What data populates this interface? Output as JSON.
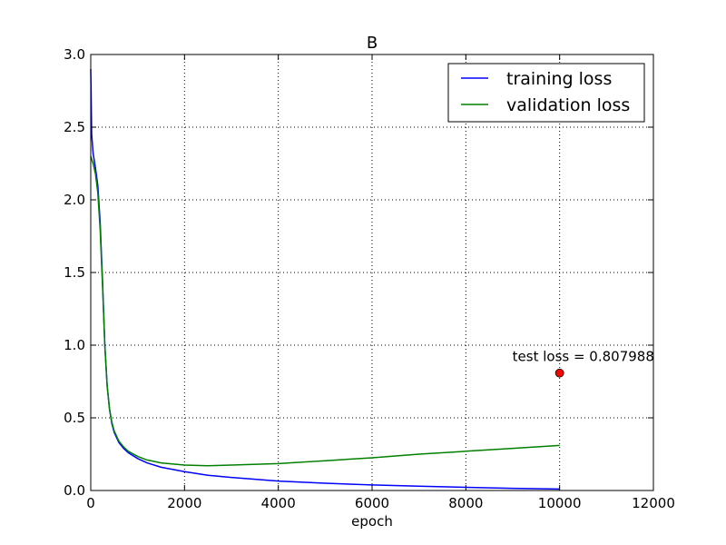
{
  "chart_data": {
    "type": "line",
    "title": "B",
    "xlabel": "epoch",
    "ylabel": "",
    "xlim": [
      0,
      12000
    ],
    "ylim": [
      0.0,
      3.0
    ],
    "xticks": [
      "0",
      "2000",
      "4000",
      "6000",
      "8000",
      "10000",
      "12000"
    ],
    "yticks": [
      "0.0",
      "0.5",
      "1.0",
      "1.5",
      "2.0",
      "2.5",
      "3.0"
    ],
    "grid": true,
    "legend_position": "top-right",
    "series": [
      {
        "name": "training loss",
        "color": "#0000ff",
        "x": [
          0,
          20,
          50,
          100,
          150,
          200,
          250,
          300,
          350,
          400,
          450,
          500,
          600,
          700,
          800,
          1000,
          1200,
          1500,
          2000,
          2500,
          3000,
          4000,
          5000,
          6000,
          7000,
          8000,
          9000,
          10000
        ],
        "y": [
          2.9,
          2.45,
          2.32,
          2.22,
          2.1,
          1.85,
          1.45,
          1.0,
          0.72,
          0.56,
          0.46,
          0.4,
          0.33,
          0.29,
          0.26,
          0.22,
          0.19,
          0.16,
          0.13,
          0.105,
          0.09,
          0.065,
          0.05,
          0.038,
          0.03,
          0.022,
          0.015,
          0.01
        ]
      },
      {
        "name": "validation loss",
        "color": "#008000",
        "x": [
          0,
          20,
          50,
          100,
          150,
          200,
          250,
          300,
          350,
          400,
          450,
          500,
          600,
          700,
          800,
          1000,
          1200,
          1500,
          2000,
          2500,
          3000,
          4000,
          5000,
          6000,
          7000,
          8000,
          9000,
          10000
        ],
        "y": [
          2.3,
          2.28,
          2.25,
          2.18,
          2.05,
          1.8,
          1.42,
          1.0,
          0.72,
          0.56,
          0.47,
          0.41,
          0.34,
          0.3,
          0.27,
          0.235,
          0.21,
          0.19,
          0.175,
          0.17,
          0.175,
          0.185,
          0.205,
          0.225,
          0.25,
          0.27,
          0.29,
          0.31
        ]
      }
    ],
    "annotations": [
      {
        "text": "test loss = 0.807988",
        "x": 10000,
        "y": 0.807988,
        "color": "#ff0000"
      }
    ]
  }
}
